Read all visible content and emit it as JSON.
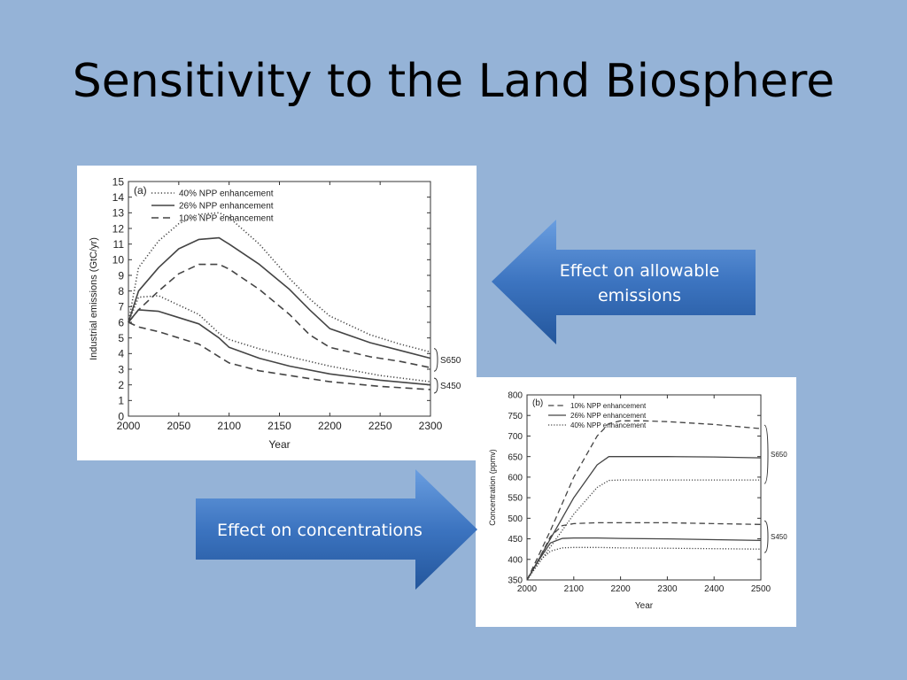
{
  "slide": {
    "title": "Sensitivity to the Land Biosphere",
    "arrow_right_label": "Effect on allowable emissions",
    "arrow_left_label": "Effect on concentrations"
  },
  "colors": {
    "background": "#95b3d7",
    "arrow_light": "#5b8fd4",
    "arrow_dark": "#1f4f8f",
    "line": "#444444"
  },
  "chart_data": [
    {
      "type": "line",
      "panel_label": "(a)",
      "xlabel": "Year",
      "ylabel": "Industrial emissions (GtC/yr)",
      "xlim": [
        2000,
        2300
      ],
      "ylim": [
        0,
        15
      ],
      "xticks": [
        2000,
        2050,
        2100,
        2150,
        2200,
        2250,
        2300
      ],
      "yticks": [
        0,
        1,
        2,
        3,
        4,
        5,
        6,
        7,
        8,
        9,
        10,
        11,
        12,
        13,
        14,
        15
      ],
      "legend_position": "top-left",
      "legend": [
        {
          "name": "40% NPP enhancement",
          "style": "dotted"
        },
        {
          "name": "26% NPP enhancement",
          "style": "solid"
        },
        {
          "name": "10% NPP enhancement",
          "style": "dashed"
        }
      ],
      "group_labels": [
        {
          "text": "S650",
          "y": 3.8
        },
        {
          "text": "S450",
          "y": 2.0
        }
      ],
      "series": [
        {
          "style": "dotted",
          "group": "S650",
          "x": [
            2000,
            2010,
            2030,
            2050,
            2070,
            2090,
            2100,
            2130,
            2160,
            2180,
            2200,
            2240,
            2270,
            2300
          ],
          "y": [
            6.0,
            9.5,
            11.2,
            12.3,
            12.9,
            13.0,
            12.7,
            11.0,
            8.8,
            7.5,
            6.4,
            5.2,
            4.6,
            4.1
          ]
        },
        {
          "style": "solid",
          "group": "S650",
          "x": [
            2000,
            2010,
            2030,
            2050,
            2070,
            2090,
            2100,
            2130,
            2160,
            2180,
            2200,
            2240,
            2270,
            2300
          ],
          "y": [
            6.0,
            8.0,
            9.5,
            10.7,
            11.3,
            11.4,
            11.0,
            9.7,
            8.1,
            6.8,
            5.6,
            4.7,
            4.2,
            3.7
          ]
        },
        {
          "style": "dashed",
          "group": "S650",
          "x": [
            2000,
            2010,
            2030,
            2050,
            2070,
            2090,
            2100,
            2130,
            2160,
            2180,
            2200,
            2240,
            2270,
            2300
          ],
          "y": [
            6.0,
            6.8,
            8.0,
            9.1,
            9.7,
            9.7,
            9.4,
            8.1,
            6.5,
            5.2,
            4.4,
            3.8,
            3.5,
            3.1
          ]
        },
        {
          "style": "dotted",
          "group": "S450",
          "x": [
            2000,
            2010,
            2030,
            2050,
            2070,
            2090,
            2100,
            2130,
            2160,
            2200,
            2250,
            2300
          ],
          "y": [
            6.0,
            7.6,
            7.7,
            7.1,
            6.5,
            5.3,
            4.9,
            4.3,
            3.8,
            3.2,
            2.6,
            2.2
          ]
        },
        {
          "style": "solid",
          "group": "S450",
          "x": [
            2000,
            2010,
            2030,
            2050,
            2070,
            2090,
            2100,
            2130,
            2160,
            2200,
            2250,
            2300
          ],
          "y": [
            6.0,
            6.8,
            6.7,
            6.3,
            5.9,
            5.0,
            4.4,
            3.7,
            3.2,
            2.7,
            2.3,
            2.0
          ]
        },
        {
          "style": "dashed",
          "group": "S450",
          "x": [
            2000,
            2010,
            2030,
            2050,
            2070,
            2090,
            2100,
            2130,
            2160,
            2200,
            2250,
            2300
          ],
          "y": [
            6.0,
            5.7,
            5.4,
            5.0,
            4.6,
            3.8,
            3.4,
            2.9,
            2.6,
            2.2,
            1.9,
            1.7
          ]
        }
      ]
    },
    {
      "type": "line",
      "panel_label": "(b)",
      "xlabel": "Year",
      "ylabel": "Concentration (ppmv)",
      "xlim": [
        2000,
        2500
      ],
      "ylim": [
        350,
        800
      ],
      "xticks": [
        2000,
        2100,
        2200,
        2300,
        2400,
        2500
      ],
      "yticks": [
        350,
        400,
        450,
        500,
        550,
        600,
        650,
        700,
        750,
        800
      ],
      "legend_position": "top-left",
      "legend": [
        {
          "name": "10% NPP enhancement",
          "style": "dashed"
        },
        {
          "name": "26% NPP enhancement",
          "style": "solid"
        },
        {
          "name": "40% NPP enhancement",
          "style": "dotted"
        }
      ],
      "group_labels": [
        {
          "text": "S650",
          "y": 650
        },
        {
          "text": "S450",
          "y": 450
        }
      ],
      "series": [
        {
          "style": "dashed",
          "group": "S650",
          "x": [
            2000,
            2050,
            2100,
            2150,
            2175,
            2200,
            2250,
            2300,
            2400,
            2500
          ],
          "y": [
            350,
            470,
            600,
            700,
            730,
            737,
            737,
            735,
            728,
            718
          ]
        },
        {
          "style": "solid",
          "group": "S650",
          "x": [
            2000,
            2050,
            2100,
            2150,
            2175,
            2200,
            2300,
            2400,
            2500
          ],
          "y": [
            350,
            450,
            550,
            630,
            650,
            650,
            650,
            649,
            647
          ]
        },
        {
          "style": "dotted",
          "group": "S650",
          "x": [
            2000,
            2050,
            2100,
            2150,
            2175,
            2200,
            2300,
            2400,
            2500
          ],
          "y": [
            350,
            430,
            510,
            575,
            592,
            593,
            593,
            593,
            593
          ]
        },
        {
          "style": "dashed",
          "group": "S450",
          "x": [
            2000,
            2025,
            2050,
            2075,
            2100,
            2150,
            2200,
            2300,
            2400,
            2500
          ],
          "y": [
            350,
            400,
            455,
            482,
            487,
            489,
            489,
            489,
            487,
            485
          ]
        },
        {
          "style": "solid",
          "group": "S450",
          "x": [
            2000,
            2025,
            2050,
            2075,
            2100,
            2150,
            2200,
            2300,
            2400,
            2500
          ],
          "y": [
            350,
            398,
            440,
            451,
            452,
            452,
            451,
            450,
            448,
            446
          ]
        },
        {
          "style": "dotted",
          "group": "S450",
          "x": [
            2000,
            2025,
            2050,
            2075,
            2100,
            2150,
            2200,
            2300,
            2400,
            2500
          ],
          "y": [
            350,
            395,
            420,
            428,
            429,
            429,
            428,
            427,
            426,
            425
          ]
        }
      ]
    }
  ]
}
